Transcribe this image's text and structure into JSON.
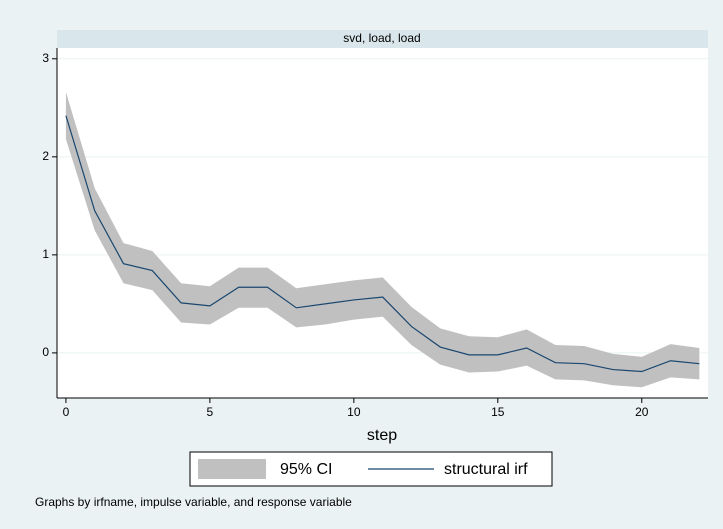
{
  "chart_data": {
    "type": "line",
    "title": "svd, load, load",
    "x_label": "step",
    "note": "Graphs by irfname, impulse variable, and response variable",
    "x": [
      0,
      1,
      2,
      3,
      4,
      5,
      6,
      7,
      8,
      9,
      10,
      11,
      12,
      13,
      14,
      15,
      16,
      17,
      18,
      19,
      20,
      21,
      22
    ],
    "band": {
      "name": "95% CI",
      "color": "#c0c0c0",
      "lower": [
        2.18,
        1.25,
        0.71,
        0.64,
        0.31,
        0.29,
        0.46,
        0.46,
        0.26,
        0.29,
        0.34,
        0.37,
        0.08,
        -0.12,
        -0.2,
        -0.19,
        -0.13,
        -0.27,
        -0.28,
        -0.33,
        -0.35,
        -0.25,
        -0.27
      ],
      "upper": [
        2.66,
        1.68,
        1.12,
        1.04,
        0.71,
        0.68,
        0.87,
        0.87,
        0.66,
        0.7,
        0.74,
        0.77,
        0.47,
        0.25,
        0.17,
        0.16,
        0.24,
        0.08,
        0.07,
        -0.01,
        -0.04,
        0.09,
        0.05
      ]
    },
    "series": [
      {
        "name": "structural irf",
        "color": "#1a476f",
        "values": [
          2.42,
          1.45,
          0.91,
          0.84,
          0.51,
          0.48,
          0.67,
          0.67,
          0.46,
          0.5,
          0.54,
          0.57,
          0.27,
          0.06,
          -0.02,
          -0.02,
          0.05,
          -0.1,
          -0.11,
          -0.17,
          -0.19,
          -0.08,
          -0.11
        ]
      }
    ],
    "xlim": [
      -0.31,
      22.3
    ],
    "ylim": [
      -0.46,
      3.11
    ],
    "xticks": [
      0,
      5,
      10,
      15,
      20
    ],
    "yticks": [
      0,
      1,
      2,
      3
    ],
    "grid": true
  }
}
